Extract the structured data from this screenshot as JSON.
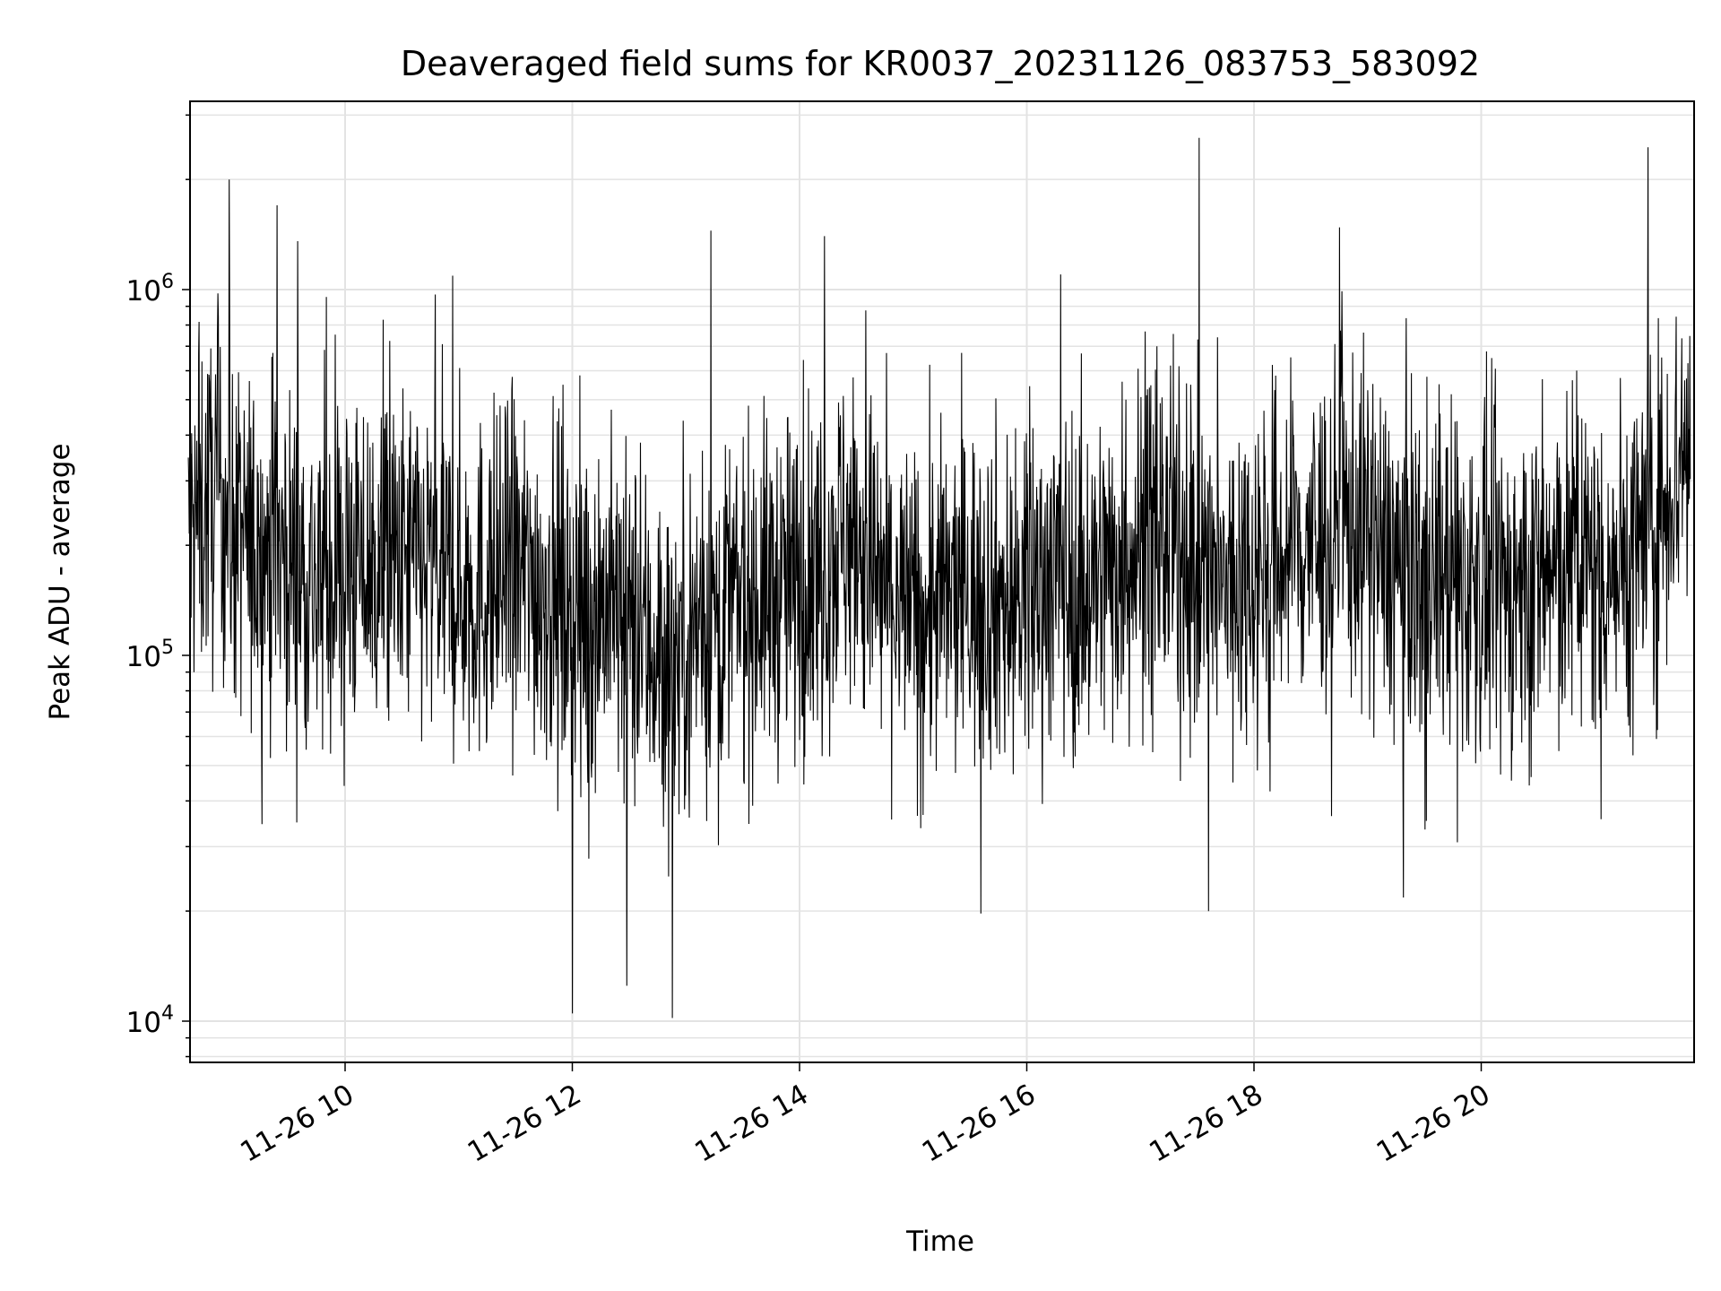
{
  "chart_data": {
    "type": "line",
    "title": "Deaveraged field sums for KR0037_20231126_083753_583092",
    "xlabel": "Time",
    "ylabel": "Peak ADU - average",
    "x_range": [
      "11-26 08:37",
      "11-26 21:49"
    ],
    "ylim": [
      8000,
      3200000
    ],
    "yscale": "log",
    "grid": "major+minor",
    "line_color": "#000000",
    "x_ticks": [
      {
        "label": "11-26 10",
        "hour": 10
      },
      {
        "label": "11-26 12",
        "hour": 12
      },
      {
        "label": "11-26 14",
        "hour": 14
      },
      {
        "label": "11-26 16",
        "hour": 16
      },
      {
        "label": "11-26 18",
        "hour": 18
      },
      {
        "label": "11-26 20",
        "hour": 20
      }
    ],
    "y_ticks": [
      {
        "base": "10",
        "exp": "4",
        "value": 10000
      },
      {
        "base": "10",
        "exp": "5",
        "value": 100000
      },
      {
        "base": "10",
        "exp": "6",
        "value": 1000000
      }
    ],
    "series": [
      {
        "x_hours": [
          8.62,
          8.75,
          8.9,
          9.0,
          9.2,
          9.4,
          9.6,
          9.8,
          10.0,
          10.3,
          10.6,
          10.9,
          11.2,
          11.5,
          11.8,
          12.0,
          12.3,
          12.6,
          12.9,
          13.2,
          13.5,
          13.8,
          14.1,
          14.4,
          14.7,
          15.0,
          15.3,
          15.6,
          15.9,
          16.2,
          16.5,
          16.8,
          17.1,
          17.4,
          17.7,
          18.0,
          18.3,
          18.6,
          18.9,
          19.2,
          19.5,
          19.8,
          20.1,
          20.4,
          20.7,
          21.0,
          21.3,
          21.5,
          21.8
        ],
        "y_median": [
          200000,
          250000,
          280000,
          220000,
          190000,
          200000,
          170000,
          160000,
          180000,
          170000,
          180000,
          160000,
          150000,
          170000,
          150000,
          140000,
          140000,
          110000,
          100000,
          130000,
          140000,
          150000,
          160000,
          220000,
          160000,
          130000,
          140000,
          150000,
          140000,
          170000,
          150000,
          180000,
          220000,
          190000,
          150000,
          180000,
          190000,
          210000,
          230000,
          180000,
          170000,
          160000,
          150000,
          150000,
          180000,
          170000,
          190000,
          220000,
          380000
        ],
        "y_peaks": [
          {
            "hour": 8.98,
            "value": 2000000
          },
          {
            "hour": 9.4,
            "value": 1700000
          },
          {
            "hour": 12.0,
            "value": 10500
          },
          {
            "hour": 12.88,
            "value": 10200
          },
          {
            "hour": 12.48,
            "value": 12500
          },
          {
            "hour": 13.22,
            "value": 1450000
          },
          {
            "hour": 14.22,
            "value": 1400000
          },
          {
            "hour": 16.3,
            "value": 1100000
          },
          {
            "hour": 17.6,
            "value": 20000
          },
          {
            "hour": 21.47,
            "value": 2450000
          }
        ]
      }
    ]
  }
}
